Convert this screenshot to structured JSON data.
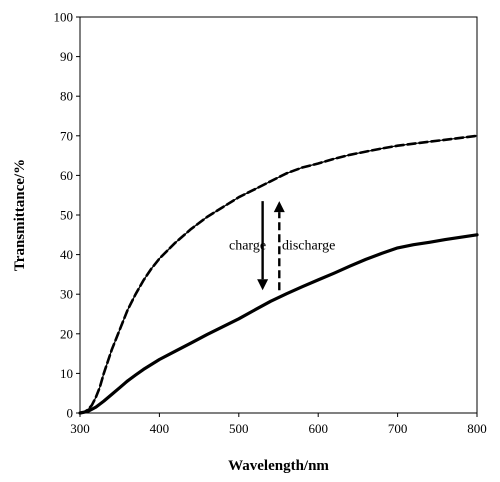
{
  "chart_data": {
    "type": "line",
    "title": "",
    "xlabel": "Wavelength/nm",
    "ylabel": "Transmittance/%",
    "xlim": [
      300,
      800
    ],
    "ylim": [
      0,
      100
    ],
    "xticks": [
      300,
      400,
      500,
      600,
      700,
      800
    ],
    "yticks": [
      0,
      10,
      20,
      30,
      40,
      50,
      60,
      70,
      80,
      90,
      100
    ],
    "grid": false,
    "legend": "none",
    "series": [
      {
        "style": "thin-solid",
        "color": "#000000",
        "x": [
          300,
          305,
          310,
          315,
          320,
          325,
          330,
          340,
          350,
          360,
          370,
          380,
          390,
          400,
          420,
          440,
          460,
          480,
          500,
          520,
          540,
          560,
          580,
          600,
          620,
          640,
          660,
          680,
          700,
          720,
          740,
          760,
          780,
          800
        ],
        "y": [
          0,
          0.2,
          0.8,
          2,
          4,
          6.5,
          10,
          16,
          21,
          26,
          30,
          33.5,
          36.5,
          39,
          43,
          46.5,
          49.5,
          52,
          54.5,
          56.5,
          58.5,
          60.5,
          62,
          63,
          64.2,
          65.2,
          66,
          66.8,
          67.5,
          68,
          68.5,
          69,
          69.5,
          70
        ]
      },
      {
        "style": "dashed",
        "color": "#000000",
        "x": [
          300,
          305,
          310,
          315,
          320,
          325,
          330,
          340,
          350,
          360,
          370,
          380,
          390,
          400,
          420,
          440,
          460,
          480,
          500,
          520,
          540,
          560,
          580,
          600,
          620,
          640,
          660,
          680,
          700,
          720,
          740,
          760,
          780,
          800
        ],
        "y": [
          0,
          0.2,
          0.8,
          2,
          4,
          6.5,
          10,
          16,
          21,
          26,
          30,
          33.5,
          36.5,
          39,
          43,
          46.5,
          49.5,
          52,
          54.5,
          56.5,
          58.5,
          60.5,
          62,
          63,
          64.2,
          65.2,
          66,
          66.8,
          67.5,
          68,
          68.5,
          69,
          69.5,
          70
        ]
      },
      {
        "style": "thick-solid",
        "color": "#000000",
        "x": [
          300,
          310,
          320,
          330,
          340,
          350,
          360,
          370,
          380,
          400,
          420,
          440,
          460,
          480,
          500,
          520,
          540,
          560,
          580,
          600,
          620,
          640,
          660,
          680,
          700,
          720,
          740,
          760,
          780,
          800
        ],
        "y": [
          0,
          0.4,
          1.5,
          3,
          4.7,
          6.4,
          8.1,
          9.6,
          11,
          13.5,
          15.6,
          17.7,
          19.8,
          21.8,
          23.8,
          26,
          28.2,
          30.1,
          31.9,
          33.6,
          35.3,
          37.1,
          38.8,
          40.3,
          41.7,
          42.5,
          43.1,
          43.8,
          44.4,
          45
        ]
      }
    ],
    "annotations": [
      {
        "text": "charge",
        "x": 511,
        "y": 42.5
      },
      {
        "text": "discharge",
        "x": 588,
        "y": 42.5
      }
    ],
    "arrows": [
      {
        "label": "charge",
        "x": 530,
        "y_from": 53.5,
        "y_to": 31,
        "style": "solid"
      },
      {
        "label": "discharge",
        "x": 551,
        "y_from": 31,
        "y_to": 53.5,
        "style": "dashed"
      }
    ]
  }
}
